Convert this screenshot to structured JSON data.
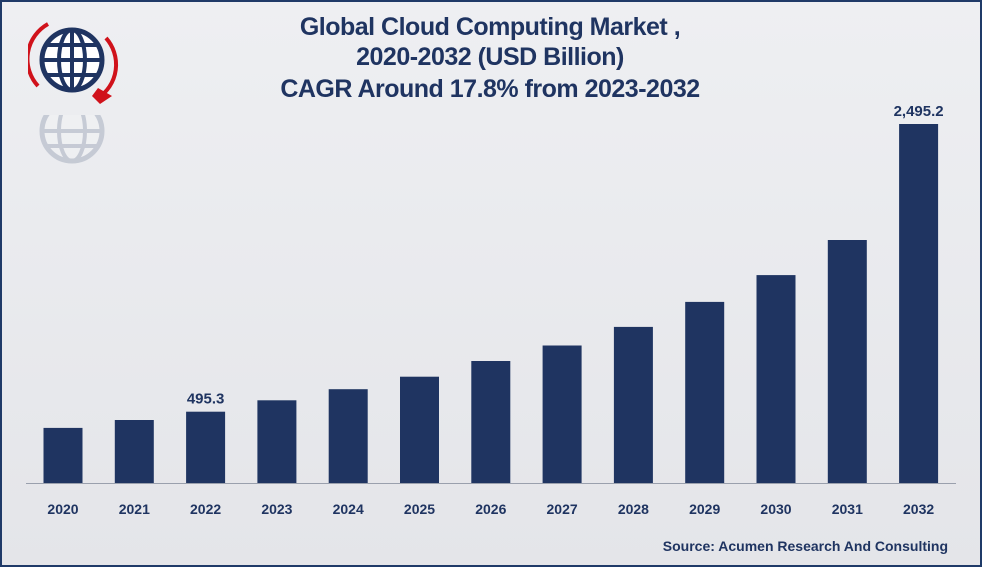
{
  "title_lines": [
    "Global Cloud Computing Market ,",
    "2020-2032 (USD Billion)",
    "CAGR Around 17.8% from 2023-2032"
  ],
  "source": "Source: Acumen Research And Consulting",
  "colors": {
    "bar": "#1f3461",
    "text": "#1f3461",
    "accent_red": "#d0121b",
    "background": "#e9eaed"
  },
  "logo": {
    "icon": "globe-logo-icon"
  },
  "chart_data": {
    "type": "bar",
    "categories": [
      "2020",
      "2021",
      "2022",
      "2023",
      "2024",
      "2025",
      "2026",
      "2027",
      "2028",
      "2029",
      "2030",
      "2031",
      "2032"
    ],
    "values": [
      383,
      438,
      495.3,
      575,
      652,
      739,
      848,
      956,
      1085,
      1259,
      1445,
      1689,
      2495.2
    ],
    "data_labels": [
      {
        "index": 2,
        "text": "495.3"
      },
      {
        "index": 12,
        "text": "2,495.2"
      }
    ],
    "ylim": [
      0,
      2500
    ],
    "grid": false,
    "legend": "none"
  }
}
